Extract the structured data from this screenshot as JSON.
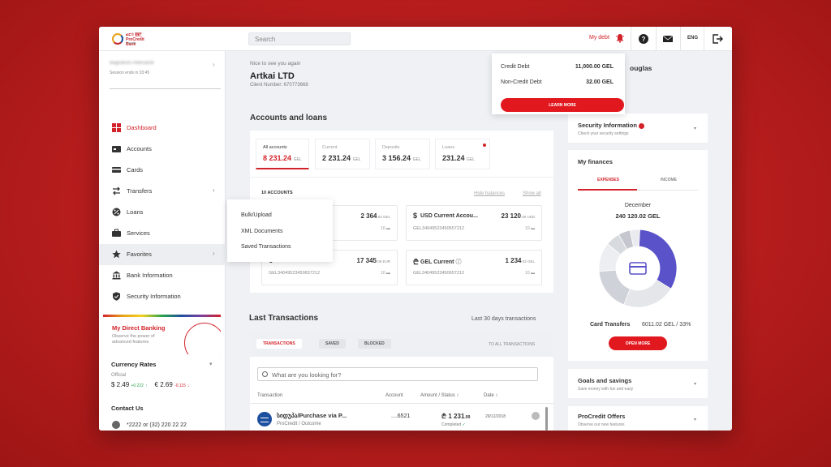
{
  "header": {
    "logo_lines": [
      "ፎሮይ ፪፪፫",
      "ProCredit Bank",
      "Georgia"
    ],
    "search_placeholder": "Search",
    "my_debt": "My debt",
    "language": "ENG"
  },
  "sidebar": {
    "session": "Session ends in 03:45",
    "user_name": "Bagrationi Aleksandr",
    "nav": [
      {
        "label": "Dashboard",
        "icon": "dashboard-icon",
        "active": true
      },
      {
        "label": "Accounts",
        "icon": "accounts-icon"
      },
      {
        "label": "Cards",
        "icon": "cards-icon"
      },
      {
        "label": "Transfers",
        "icon": "transfers-icon"
      },
      {
        "label": "Loans",
        "icon": "loans-icon"
      },
      {
        "label": "Services",
        "icon": "services-icon"
      },
      {
        "label": "Favorites",
        "icon": "star-icon",
        "highlighted": true
      },
      {
        "label": "Bank Information",
        "icon": "bank-icon"
      },
      {
        "label": "Security Information",
        "icon": "shield-icon"
      }
    ],
    "promo": {
      "title": "My Direct Banking",
      "subtitle": "Observe the power of advanced features"
    },
    "rates": {
      "title": "Currency Rates",
      "official": "Official",
      "usd": "$ 2.49",
      "usd_change": "+0.222",
      "eur": "€ 2.69",
      "eur_change": "-0.115"
    },
    "contact": {
      "title": "Contact Us",
      "phone": "*2222 or (32) 220 22 22"
    }
  },
  "main": {
    "greeting": "Nice to see you again",
    "company": "Artkai LTD",
    "client_number": "Client Number: 670773668",
    "accounts_title": "Accounts and loans",
    "tabs": [
      {
        "label": "All accounts",
        "value": "8 231.24",
        "cur": "GEL"
      },
      {
        "label": "Current",
        "value": "2 231.24",
        "cur": "GEL"
      },
      {
        "label": "Deposits",
        "value": "3 156.24",
        "cur": "GEL"
      },
      {
        "label": "Loans",
        "value": "231.24",
        "cur": "GEL"
      }
    ],
    "accounts_count": "10 ACCOUNTS",
    "hide_balances": "Hide balances",
    "show_all": "Show all",
    "accounts": [
      {
        "symbol": "",
        "name": "",
        "amount": "2 364",
        "dec": ".02 GEL",
        "iban": "",
        "count": "10"
      },
      {
        "symbol": "$",
        "name": "USD Current Accou...",
        "amount": "23 120",
        "dec": ".00 USD",
        "iban": "GEL34049523450657212",
        "count": "10"
      },
      {
        "symbol": "€",
        "name": "EUR Current",
        "amount": "17 345",
        "dec": ".05 EUR",
        "iban": "GEL34049523450657212",
        "count": "10"
      },
      {
        "symbol": "₾",
        "name": "GEL Current",
        "amount": "1 234",
        "dec": ".02 GEL",
        "iban": "GEL34049523450657212",
        "count": "10"
      }
    ],
    "favorites_menu": [
      "Bulk/Upload",
      "XML Documents",
      "Saved Transactions"
    ],
    "debt_popup": {
      "credit_label": "Credit Debt",
      "credit_value": "11,000.00 GEL",
      "noncredit_label": "Non-Credit Debt",
      "noncredit_value": "32.00 GEL",
      "button": "LEARN MORE"
    },
    "transactions": {
      "title": "Last Transactions",
      "period": "Last 30 days transactions",
      "pills": [
        "TRANSACTIONS",
        "SAVED",
        "BLOCKED"
      ],
      "to_all": "TO ALL TRANSACTIONS",
      "search_placeholder": "What are you looking for?",
      "columns": [
        "Transaction",
        "Account",
        "Amount / Status",
        "Date"
      ],
      "rows": [
        {
          "title": " სიდუპა/Purchase via P...",
          "sub": "ProCredit / Outcome",
          "account": "....6521",
          "amount": "₾ 1 231",
          "amount_dec": ".99",
          "status": "Completed",
          "date": "29/12/2018"
        }
      ]
    }
  },
  "right": {
    "partial_name": "ouglas",
    "security": {
      "title": "Security Information",
      "sub": "Check your security settings"
    },
    "finances": {
      "title": "My finances",
      "tabs": [
        "EXPENSES",
        "INCOME"
      ],
      "month": "December",
      "total": "240 120.02 GEL",
      "category_label": "Card Transfers",
      "category_value": "6011.02 GEL / 33%",
      "button": "OPEN MORE"
    },
    "goals": {
      "title": "Goals and savings",
      "sub": "Save money with fun and easy"
    },
    "offers": {
      "title": "ProCredit Offers",
      "sub": "Observe our new features"
    }
  },
  "chart_data": {
    "type": "pie",
    "segments": [
      {
        "name": "Card Transfers",
        "percent": 33,
        "color": "#5a52c8"
      },
      {
        "name": "segment-2",
        "percent": 22,
        "color": "#e4e6ea"
      },
      {
        "name": "segment-3",
        "percent": 18,
        "color": "#cfd2d8"
      },
      {
        "name": "segment-4",
        "percent": 12,
        "color": "#eceef1"
      },
      {
        "name": "segment-5",
        "percent": 6,
        "color": "#d7dade"
      },
      {
        "name": "segment-6",
        "percent": 5,
        "color": "#c4c7cd"
      },
      {
        "name": "segment-7",
        "percent": 4,
        "color": "#e9ebee"
      }
    ]
  }
}
